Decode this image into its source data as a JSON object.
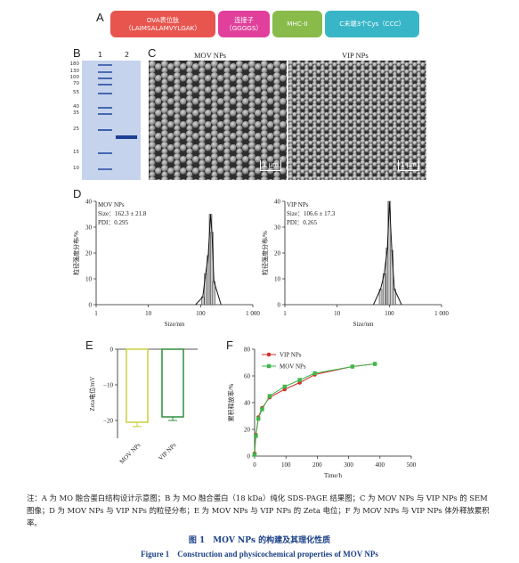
{
  "panels": {
    "a": "A",
    "b": "B",
    "c": "C",
    "d": "D",
    "e": "E",
    "f": "F"
  },
  "construct": {
    "segments": [
      {
        "line1": "OVA表位肽",
        "line2": "（LAIMSALAMVYLGAK）",
        "color": "#e8554e"
      },
      {
        "line1": "连接子",
        "line2": "（GGGGS）",
        "color": "#e0409b"
      },
      {
        "line1": "MHC-II",
        "line2": "",
        "color": "#88bb4a"
      },
      {
        "line1": "C末端3个Cys（CCC）",
        "line2": "",
        "color": "#38b6c7"
      }
    ]
  },
  "gel": {
    "lanes": [
      "1",
      "2"
    ],
    "markers": [
      "180",
      "130",
      "100",
      "70",
      "55",
      "40",
      "35",
      "25",
      "15",
      "10"
    ]
  },
  "sem": {
    "images": [
      {
        "title": "MOV NPs",
        "scale": "1 μm"
      },
      {
        "title": "VIP NPs",
        "scale": "1 μm"
      }
    ]
  },
  "chart_data": [
    {
      "type": "bar",
      "panel": "D-left",
      "annotation": [
        "MOV NPs",
        "Size：162.3 ± 21.8",
        "PDI：0.295"
      ],
      "ylabel": "粒径强度分布/%",
      "xlabel": "Size/nm",
      "xscale": "log",
      "xlim": [
        1,
        1000
      ],
      "ylim": [
        0,
        40
      ],
      "yticks": [
        "0",
        "10",
        "20",
        "30",
        "40"
      ],
      "xticks": [
        "1",
        "10",
        "100",
        "1 000"
      ],
      "x": [
        110,
        125,
        140,
        155,
        165,
        180
      ],
      "values": [
        3,
        12,
        19,
        35,
        28,
        9
      ]
    },
    {
      "type": "bar",
      "panel": "D-right",
      "annotation": [
        "VIP NPs",
        "Size：106.6 ± 17.3",
        "PDI：0.265"
      ],
      "ylabel": "粒径强度分布/%",
      "xlabel": "Size/nm",
      "xscale": "log",
      "xlim": [
        1,
        1000
      ],
      "ylim": [
        0,
        40
      ],
      "yticks": [
        "0",
        "10",
        "20",
        "30",
        "40"
      ],
      "xticks": [
        "1",
        "10",
        "100",
        "1 000"
      ],
      "x": [
        68,
        80,
        92,
        100,
        112,
        125
      ],
      "values": [
        6,
        12,
        22,
        40,
        21,
        6
      ]
    },
    {
      "type": "bar",
      "panel": "E",
      "ylabel": "Zeta电位/mV",
      "categories": [
        "MOV NPs",
        "VIP NPs"
      ],
      "values": [
        -20.5,
        -19
      ],
      "errors": [
        1.2,
        1.0
      ],
      "colors": [
        "#c8cf3a",
        "#2e8f3a"
      ],
      "ylim": [
        -25,
        0
      ],
      "yticks": [
        "0",
        "−10",
        "−20"
      ]
    },
    {
      "type": "line",
      "panel": "F",
      "ylabel": "累积释放率/%",
      "xlabel": "Time/h",
      "xlim": [
        0,
        500
      ],
      "ylim": [
        0,
        80
      ],
      "xticks": [
        "0",
        "100",
        "200",
        "300",
        "400",
        "500"
      ],
      "yticks": [
        "0",
        "20",
        "40",
        "60",
        "80"
      ],
      "series": [
        {
          "name": "VIP NPs",
          "color": "#d0312d",
          "x": [
            0,
            4,
            12,
            24,
            48,
            96,
            144,
            192,
            312,
            384
          ],
          "values": [
            2,
            16,
            29,
            36,
            44,
            50,
            55,
            61,
            67,
            69
          ]
        },
        {
          "name": "MOV NPs",
          "color": "#3cb84a",
          "x": [
            0,
            4,
            12,
            24,
            48,
            96,
            144,
            192,
            312,
            384
          ],
          "values": [
            1,
            15,
            28,
            35,
            45,
            52,
            57,
            62,
            67,
            69
          ]
        }
      ]
    }
  ],
  "note": "注：A 为 MO 融合蛋白结构设计示意图；B 为 MO 融合蛋白（18 kDa）纯化 SDS-PAGE 结果图；C 为 MOV NPs 与 VIP NPs 的 SEM 图像；D 为 MOV NPs 与 VIP NPs 的粒径分布；E 为 MOV NPs 与 VIP NPs 的 Zeta 电位；F 为 MOV NPs 与 VIP NPs 体外释放累积率。",
  "caption_cn": "图 1　MOV NPs 的构建及其理化性质",
  "caption_en": "Figure 1　Construction and physicochemical properties of MOV NPs"
}
